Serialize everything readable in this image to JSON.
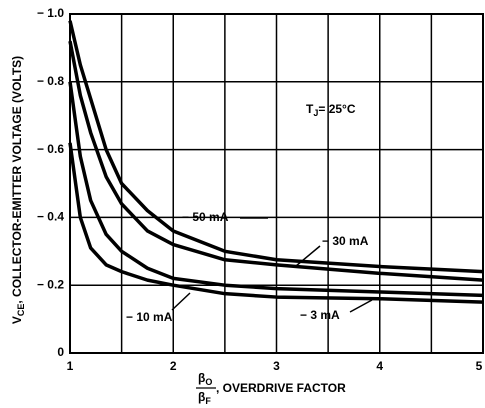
{
  "chart_data": {
    "type": "line",
    "y_label": {
      "symbol": "V",
      "subscript": "CE",
      "text": ", COLLECTOR-EMITTER VOLTAGE (VOLTS)"
    },
    "x_label": {
      "numerator": {
        "symbol": "β",
        "subscript": "O"
      },
      "denominator": {
        "symbol": "β",
        "subscript": "F"
      },
      "text": ", OVERDRIVE FACTOR"
    },
    "annotation": {
      "symbol": "T",
      "subscript": "J",
      "text": "= 25°C"
    },
    "x": [
      1,
      1.1,
      1.2,
      1.35,
      1.5,
      1.75,
      2,
      2.5,
      3,
      4,
      5
    ],
    "series": [
      {
        "name": "− 50 mA",
        "color": "#000000",
        "values": [
          -0.98,
          -0.85,
          -0.75,
          -0.6,
          -0.5,
          -0.42,
          -0.36,
          -0.3,
          -0.275,
          -0.255,
          -0.24
        ]
      },
      {
        "name": "− 30 mA",
        "color": "#000000",
        "values": [
          -0.92,
          -0.76,
          -0.65,
          -0.52,
          -0.44,
          -0.36,
          -0.32,
          -0.275,
          -0.26,
          -0.235,
          -0.215
        ]
      },
      {
        "name": "− 10 mA",
        "color": "#000000",
        "values": [
          -0.8,
          -0.58,
          -0.45,
          -0.35,
          -0.3,
          -0.25,
          -0.22,
          -0.2,
          -0.19,
          -0.18,
          -0.17
        ]
      },
      {
        "name": "− 3 mA",
        "color": "#000000",
        "values": [
          -0.62,
          -0.4,
          -0.31,
          -0.26,
          -0.24,
          -0.215,
          -0.2,
          -0.175,
          -0.165,
          -0.16,
          -0.15
        ]
      }
    ],
    "xlim": [
      1,
      5
    ],
    "xticks": [
      1,
      2,
      3,
      4,
      5
    ],
    "xminor": [
      1.5,
      2.5,
      3.5,
      4.5
    ],
    "ylim": [
      0,
      -1.0
    ],
    "yticks": [
      0,
      {
        "value": -0.2,
        "label": "− 0.2"
      },
      {
        "value": -0.4,
        "label": "− 0.4"
      },
      {
        "value": -0.6,
        "label": "− 0.6"
      },
      {
        "value": -0.8,
        "label": "− 0.8"
      },
      {
        "value": -1.0,
        "label": "− 1.0"
      }
    ],
    "grid": true
  }
}
